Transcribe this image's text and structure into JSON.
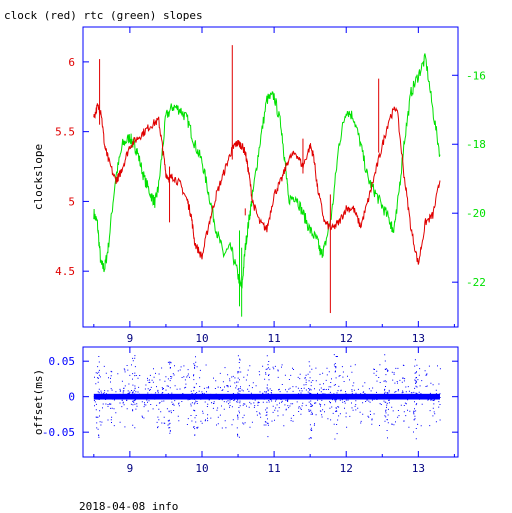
{
  "title": "clock (red) rtc (green) slopes",
  "footer": "2018-04-08 info",
  "colors": {
    "clock": "#e00000",
    "rtc": "#00e000",
    "offset": "#0000ff",
    "axes": "#0000ff",
    "text": "#000000"
  },
  "chart_data": [
    {
      "type": "line",
      "title": "clock (red) rtc (green) slopes",
      "ylabel": "clockslope",
      "xlim": [
        8.35,
        13.55
      ],
      "ylim": [
        4.1,
        6.25
      ],
      "y2lim": [
        -23.3,
        -14.6
      ],
      "x_ticks": [
        "9",
        "10",
        "11",
        "12",
        "13"
      ],
      "y_ticks": [
        "6",
        "5.5",
        "5",
        "4.5"
      ],
      "y2_ticks": [
        "-16",
        "-18",
        "-20",
        "-22"
      ],
      "series": [
        {
          "name": "clock",
          "axis": "left",
          "x": [
            8.5,
            8.55,
            8.6,
            8.65,
            8.7,
            8.8,
            8.85,
            8.9,
            9.0,
            9.1,
            9.2,
            9.3,
            9.4,
            9.45,
            9.5,
            9.55,
            9.6,
            9.7,
            9.8,
            9.85,
            9.9,
            10.0,
            10.1,
            10.2,
            10.3,
            10.4,
            10.45,
            10.5,
            10.55,
            10.6,
            10.65,
            10.7,
            10.8,
            10.9,
            11.0,
            11.1,
            11.2,
            11.3,
            11.4,
            11.5,
            11.55,
            11.6,
            11.7,
            11.8,
            11.9,
            12.0,
            12.1,
            12.2,
            12.3,
            12.4,
            12.5,
            12.6,
            12.7,
            12.8,
            12.9,
            13.0,
            13.1,
            13.2,
            13.3
          ],
          "y": [
            5.6,
            5.68,
            5.65,
            5.4,
            5.3,
            5.15,
            5.18,
            5.25,
            5.4,
            5.45,
            5.5,
            5.55,
            5.58,
            5.4,
            5.2,
            5.16,
            5.18,
            5.12,
            5.0,
            4.9,
            4.7,
            4.6,
            4.85,
            5.05,
            5.2,
            5.35,
            5.4,
            5.42,
            5.4,
            5.35,
            5.2,
            5.0,
            4.85,
            4.8,
            5.05,
            5.15,
            5.3,
            5.35,
            5.25,
            5.4,
            5.32,
            5.1,
            4.85,
            4.8,
            4.85,
            4.95,
            4.95,
            4.82,
            5.0,
            5.2,
            5.4,
            5.6,
            5.68,
            5.2,
            4.8,
            4.55,
            4.85,
            4.9,
            5.15
          ]
        },
        {
          "name": "rtc",
          "axis": "right",
          "x": [
            8.5,
            8.55,
            8.6,
            8.65,
            8.7,
            8.8,
            8.9,
            9.0,
            9.05,
            9.1,
            9.2,
            9.3,
            9.35,
            9.4,
            9.5,
            9.6,
            9.7,
            9.8,
            9.9,
            10.0,
            10.1,
            10.2,
            10.3,
            10.4,
            10.5,
            10.55,
            10.6,
            10.65,
            10.7,
            10.8,
            10.9,
            11.0,
            11.1,
            11.15,
            11.2,
            11.3,
            11.4,
            11.5,
            11.6,
            11.65,
            11.7,
            11.8,
            11.9,
            12.0,
            12.1,
            12.2,
            12.3,
            12.4,
            12.5,
            12.6,
            12.65,
            12.7,
            12.8,
            12.9,
            13.0,
            13.1,
            13.2,
            13.3
          ],
          "y": [
            -20.0,
            -20.3,
            -21.5,
            -21.6,
            -21.0,
            -19.0,
            -18.0,
            -17.8,
            -18.0,
            -18.2,
            -19.0,
            -19.5,
            -19.7,
            -19.2,
            -17.2,
            -16.9,
            -17.0,
            -17.3,
            -18.0,
            -18.5,
            -19.5,
            -20.5,
            -21.2,
            -21.0,
            -21.8,
            -22.2,
            -21.0,
            -20.2,
            -19.5,
            -18.0,
            -16.7,
            -16.6,
            -17.5,
            -18.5,
            -19.6,
            -19.5,
            -20.0,
            -20.5,
            -20.8,
            -21.2,
            -21.0,
            -20.0,
            -18.0,
            -17.0,
            -17.2,
            -18.0,
            -19.0,
            -19.4,
            -19.8,
            -20.2,
            -20.5,
            -20.0,
            -18.0,
            -16.5,
            -16.0,
            -15.5,
            -17.0,
            -18.3
          ]
        }
      ]
    },
    {
      "type": "scatter",
      "ylabel": "offset(ms)",
      "xlim": [
        8.35,
        13.55
      ],
      "ylim": [
        -0.085,
        0.07
      ],
      "x_ticks": [
        "9",
        "10",
        "11",
        "12",
        "13"
      ],
      "y_ticks": [
        "0.05",
        "0",
        "-0.05"
      ],
      "series": [
        {
          "name": "offset",
          "description_range_x": [
            8.5,
            13.3
          ],
          "typical_band": [
            -0.005,
            0.005
          ],
          "extreme_range": [
            -0.06,
            0.065
          ]
        }
      ]
    }
  ]
}
